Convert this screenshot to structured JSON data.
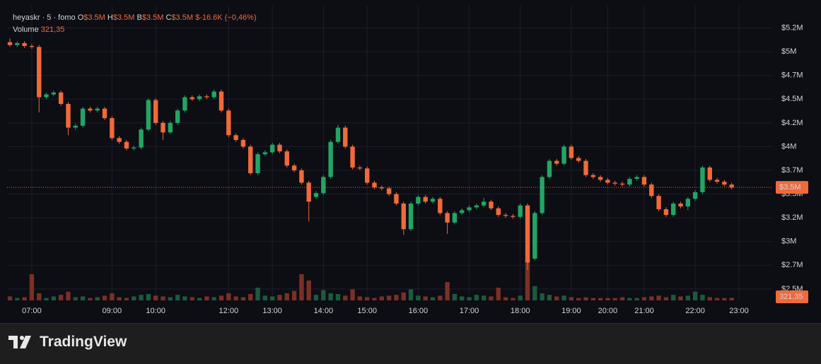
{
  "chart_data": {
    "type": "candlestick",
    "title": "heyaskr · 5 · fomo",
    "ohlc": [
      {
        "label": "O",
        "value": "$3.5M"
      },
      {
        "label": "H",
        "value": "$3.5M"
      },
      {
        "label": "B",
        "value": "$3.5M"
      },
      {
        "label": "C",
        "value": "$3.5M"
      }
    ],
    "change": "$-16.6K (−0,46%)",
    "volume_title": "Volume",
    "volume_value": "321,35",
    "last_price_label": "$3.5M",
    "last_volume_label": "321,35",
    "brand": "TradingView",
    "up_color": "#22a565",
    "down_color": "#f06a3a",
    "volume_up_color": "#1c5a3e",
    "volume_down_color": "#7a3024",
    "grid": true,
    "ylim": [
      2.38,
      5.47
    ],
    "yticks": [
      {
        "value": 2.5,
        "label": "$2.5M"
      },
      {
        "value": 2.75,
        "label": "$2.7M"
      },
      {
        "value": 3,
        "label": "$3M"
      },
      {
        "value": 3.25,
        "label": "$3.2M"
      },
      {
        "value": 3.5,
        "label": "$3.5M"
      },
      {
        "value": 3.75,
        "label": "$3.7M"
      },
      {
        "value": 4,
        "label": "$4M"
      },
      {
        "value": 4.25,
        "label": "$4.2M"
      },
      {
        "value": 4.5,
        "label": "$4.5M"
      },
      {
        "value": 4.75,
        "label": "$4.7M"
      },
      {
        "value": 5,
        "label": "$5M"
      },
      {
        "value": 5.25,
        "label": "$5.2M"
      }
    ],
    "volume_ylim": [
      0,
      8000
    ],
    "categories": [
      null,
      null,
      null,
      "07:00",
      null,
      null,
      null,
      null,
      null,
      null,
      null,
      null,
      null,
      null,
      "09:00",
      null,
      null,
      null,
      null,
      null,
      "10:00",
      null,
      null,
      null,
      null,
      null,
      null,
      null,
      null,
      null,
      "12:00",
      null,
      null,
      null,
      null,
      null,
      "13:00",
      null,
      null,
      null,
      null,
      null,
      null,
      "14:00",
      null,
      null,
      null,
      null,
      null,
      "15:00",
      null,
      null,
      null,
      null,
      null,
      null,
      "16:00",
      null,
      null,
      null,
      null,
      null,
      null,
      "17:00",
      null,
      null,
      null,
      null,
      null,
      null,
      "18:00",
      null,
      null,
      null,
      null,
      null,
      null,
      "19:00",
      null,
      null,
      null,
      null,
      "20:00",
      null,
      null,
      null,
      null,
      "21:00",
      null,
      null,
      null,
      null,
      null,
      null,
      "22:00",
      null,
      null,
      null,
      null,
      null,
      "23:00"
    ],
    "open": [
      5.1,
      5.07,
      5.09,
      5.06,
      5.05,
      4.52,
      4.55,
      4.57,
      4.45,
      4.2,
      4.22,
      4.4,
      4.38,
      4.4,
      4.3,
      4.09,
      4.05,
      3.98,
      3.99,
      4.18,
      4.49,
      4.25,
      4.15,
      4.25,
      4.38,
      4.52,
      4.5,
      4.53,
      4.52,
      4.58,
      4.38,
      4.12,
      4.07,
      4.0,
      3.72,
      3.92,
      3.94,
      4.02,
      3.95,
      3.8,
      3.75,
      3.62,
      3.47,
      3.51,
      3.68,
      4.05,
      4.2,
      4.0,
      3.78,
      3.77,
      3.62,
      3.57,
      3.56,
      3.5,
      3.4,
      3.13,
      3.4,
      3.47,
      3.42,
      3.45,
      3.3,
      3.2,
      3.3,
      3.33,
      3.36,
      3.38,
      3.42,
      3.35,
      3.28,
      3.27,
      3.26,
      3.38,
      2.82,
      3.3,
      3.68,
      3.85,
      3.82,
      4.0,
      3.88,
      3.85,
      3.7,
      3.68,
      3.65,
      3.62,
      3.61,
      3.6,
      3.66,
      3.68,
      3.6,
      3.48,
      3.34,
      3.28,
      3.4,
      3.37,
      3.45,
      3.52,
      3.78,
      3.65,
      3.63,
      3.6,
      null
    ],
    "high": [
      5.14,
      5.11,
      5.11,
      5.08,
      5.07,
      4.57,
      4.59,
      4.59,
      4.47,
      4.24,
      4.42,
      4.42,
      4.42,
      4.42,
      4.32,
      4.11,
      4.07,
      4.01,
      4.2,
      4.51,
      4.51,
      4.27,
      4.27,
      4.4,
      4.54,
      4.54,
      4.55,
      4.55,
      4.6,
      4.6,
      4.4,
      4.14,
      4.09,
      4.02,
      3.94,
      3.96,
      4.04,
      4.04,
      3.97,
      3.82,
      3.77,
      3.64,
      3.53,
      3.7,
      4.07,
      4.23,
      4.22,
      4.02,
      3.8,
      3.79,
      3.64,
      3.59,
      3.58,
      3.52,
      3.42,
      3.42,
      3.49,
      3.49,
      3.47,
      3.47,
      3.32,
      3.32,
      3.35,
      3.38,
      3.4,
      3.46,
      3.44,
      3.37,
      3.3,
      3.29,
      3.4,
      3.4,
      3.32,
      3.7,
      3.87,
      3.87,
      4.02,
      4.02,
      3.9,
      3.87,
      3.72,
      3.7,
      3.67,
      3.64,
      3.63,
      3.68,
      3.7,
      3.7,
      3.62,
      3.5,
      3.36,
      3.42,
      3.42,
      3.47,
      3.54,
      3.8,
      3.8,
      3.67,
      3.65,
      3.62,
      null
    ],
    "low": [
      5.05,
      5.05,
      5.04,
      5.03,
      4.36,
      4.5,
      4.53,
      4.43,
      4.12,
      4.18,
      4.2,
      4.36,
      4.36,
      4.28,
      4.07,
      4.03,
      3.96,
      3.96,
      3.97,
      4.16,
      4.23,
      4.07,
      4.13,
      4.23,
      4.36,
      4.48,
      4.48,
      4.5,
      4.5,
      4.36,
      4.1,
      4.05,
      3.98,
      3.7,
      3.7,
      3.9,
      3.92,
      3.93,
      3.78,
      3.73,
      3.6,
      3.21,
      3.45,
      3.49,
      3.66,
      4.03,
      3.98,
      3.76,
      3.75,
      3.6,
      3.55,
      3.54,
      3.48,
      3.38,
      3.07,
      3.11,
      3.38,
      3.4,
      3.4,
      3.28,
      3.08,
      3.18,
      3.28,
      3.31,
      3.34,
      3.36,
      3.33,
      3.26,
      3.25,
      3.24,
      3.24,
      2.7,
      2.8,
      3.28,
      3.66,
      3.8,
      3.8,
      3.86,
      3.83,
      3.68,
      3.66,
      3.63,
      3.6,
      3.59,
      3.58,
      3.58,
      3.64,
      3.58,
      3.46,
      3.32,
      3.26,
      3.26,
      3.35,
      3.33,
      3.43,
      3.5,
      3.63,
      3.61,
      3.58,
      3.55,
      null
    ],
    "close": [
      5.07,
      5.09,
      5.06,
      5.05,
      4.52,
      4.55,
      4.57,
      4.45,
      4.2,
      4.22,
      4.4,
      4.38,
      4.4,
      4.3,
      4.09,
      4.05,
      3.98,
      3.99,
      4.18,
      4.49,
      4.25,
      4.15,
      4.25,
      4.38,
      4.52,
      4.5,
      4.53,
      4.52,
      4.58,
      4.38,
      4.12,
      4.07,
      4.0,
      3.72,
      3.92,
      3.94,
      4.02,
      3.95,
      3.8,
      3.75,
      3.62,
      3.42,
      3.51,
      3.68,
      4.05,
      4.2,
      4.0,
      3.78,
      3.77,
      3.62,
      3.57,
      3.56,
      3.5,
      3.4,
      3.13,
      3.4,
      3.47,
      3.42,
      3.45,
      3.3,
      3.2,
      3.3,
      3.33,
      3.36,
      3.38,
      3.42,
      3.35,
      3.28,
      3.27,
      3.26,
      3.38,
      2.78,
      3.3,
      3.68,
      3.85,
      3.82,
      4.0,
      3.88,
      3.85,
      3.7,
      3.68,
      3.65,
      3.62,
      3.61,
      3.6,
      3.66,
      3.68,
      3.6,
      3.48,
      3.34,
      3.28,
      3.4,
      3.37,
      3.45,
      3.52,
      3.78,
      3.65,
      3.63,
      3.6,
      3.57,
      null
    ],
    "volume": [
      500,
      300,
      400,
      3300,
      900,
      300,
      500,
      700,
      1100,
      400,
      500,
      300,
      400,
      600,
      900,
      400,
      300,
      500,
      700,
      800,
      600,
      500,
      400,
      700,
      500,
      400,
      300,
      500,
      400,
      600,
      900,
      500,
      400,
      800,
      1600,
      600,
      500,
      700,
      900,
      1200,
      3300,
      2500,
      700,
      1300,
      900,
      800,
      600,
      1400,
      500,
      400,
      300,
      500,
      600,
      700,
      1000,
      1400,
      600,
      500,
      400,
      600,
      2300,
      800,
      500,
      400,
      700,
      600,
      500,
      1600,
      400,
      300,
      600,
      5100,
      1800,
      900,
      700,
      500,
      600,
      400,
      300,
      400,
      300,
      300,
      300,
      300,
      400,
      300,
      300,
      400,
      500,
      600,
      400,
      700,
      500,
      600,
      1100,
      700,
      400,
      300,
      300,
      321.35,
      null
    ]
  }
}
